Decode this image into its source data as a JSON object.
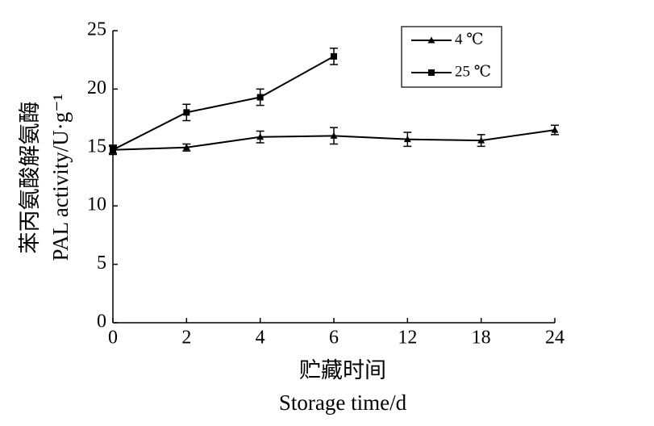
{
  "chart_data": {
    "type": "line",
    "categories": [
      "0",
      "2",
      "4",
      "6",
      "12",
      "18",
      "24"
    ],
    "x_label": [
      "贮藏时间",
      "Storage  time/d"
    ],
    "y_label": [
      "苯丙氨酸解氨酶",
      "PAL activity/U·g⁻¹"
    ],
    "ylim": [
      0,
      25
    ],
    "yticks": [
      0,
      5,
      10,
      15,
      20,
      25
    ],
    "legend": "upper right",
    "series": [
      {
        "name": "4 ℃",
        "color": "#000000",
        "marker": "triangle",
        "values": [
          14.8,
          15.0,
          15.9,
          16.0,
          15.7,
          15.6,
          16.5
        ],
        "errors": [
          0.4,
          0.3,
          0.5,
          0.7,
          0.6,
          0.5,
          0.4
        ]
      },
      {
        "name": "25 ℃",
        "color": "#000000",
        "marker": "square",
        "values": [
          14.8,
          18.0,
          19.3,
          22.8,
          null,
          null,
          null
        ],
        "errors": [
          0.3,
          0.7,
          0.7,
          0.7,
          null,
          null,
          null
        ]
      }
    ]
  }
}
